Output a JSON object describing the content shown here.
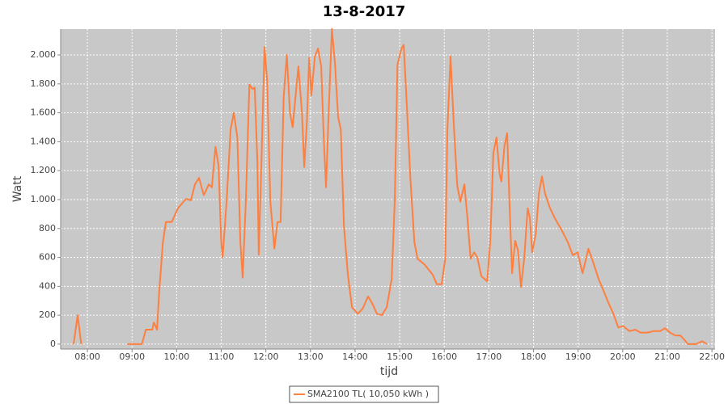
{
  "chart_data": {
    "type": "line",
    "title": "13-8-2017",
    "x_label": "tijd",
    "y_label": "Watt",
    "xlim": [
      7.4,
      22.07
    ],
    "ylim": [
      -34,
      2179
    ],
    "xticks": [
      {
        "value": 8,
        "label": "08:00"
      },
      {
        "value": 9,
        "label": "09:00"
      },
      {
        "value": 10,
        "label": "10:00"
      },
      {
        "value": 11,
        "label": "11:00"
      },
      {
        "value": 12,
        "label": "12:00"
      },
      {
        "value": 13,
        "label": "13:00"
      },
      {
        "value": 14,
        "label": "14:00"
      },
      {
        "value": 15,
        "label": "15:00"
      },
      {
        "value": 16,
        "label": "16:00"
      },
      {
        "value": 17,
        "label": "17:00"
      },
      {
        "value": 18,
        "label": "18:00"
      },
      {
        "value": 19,
        "label": "19:00"
      },
      {
        "value": 20,
        "label": "20:00"
      },
      {
        "value": 21,
        "label": "21:00"
      },
      {
        "value": 22,
        "label": "22:00"
      }
    ],
    "yticks": [
      0,
      200,
      400,
      600,
      800,
      {
        "value": 1000,
        "label": "1.000"
      },
      {
        "value": 1200,
        "label": "1.200"
      },
      {
        "value": 1400,
        "label": "1.400"
      },
      {
        "value": 1600,
        "label": "1.600"
      },
      {
        "value": 1800,
        "label": "1.800"
      },
      {
        "value": 2000,
        "label": "2.000"
      }
    ],
    "grid": true,
    "legend": "bottom",
    "series": [
      {
        "name": "SMA2100 TL( 10,050 kWh )",
        "color": "#ff7f3f",
        "x": [
          7.69,
          7.78,
          7.86,
          8.4,
          8.89,
          9.22,
          9.31,
          9.45,
          9.49,
          9.56,
          9.61,
          9.69,
          9.76,
          9.89,
          10.03,
          10.21,
          10.32,
          10.41,
          10.5,
          10.61,
          10.72,
          10.79,
          10.87,
          10.94,
          11.0,
          11.03,
          11.12,
          11.21,
          11.28,
          11.36,
          11.43,
          11.48,
          11.55,
          11.63,
          11.7,
          11.75,
          11.81,
          11.84,
          11.9,
          11.97,
          12.03,
          12.1,
          12.19,
          12.26,
          12.33,
          12.4,
          12.47,
          12.54,
          12.6,
          12.68,
          12.73,
          12.81,
          12.86,
          12.92,
          12.97,
          13.02,
          13.1,
          13.17,
          13.24,
          13.3,
          13.35,
          13.4,
          13.48,
          13.55,
          13.62,
          13.68,
          13.75,
          13.84,
          13.93,
          14.06,
          14.17,
          14.29,
          14.38,
          14.49,
          14.6,
          14.71,
          14.82,
          14.89,
          14.95,
          15.04,
          15.09,
          15.16,
          15.24,
          15.33,
          15.4,
          15.56,
          15.74,
          15.83,
          15.94,
          16.02,
          16.07,
          16.14,
          16.21,
          16.29,
          16.36,
          16.45,
          16.52,
          16.59,
          16.67,
          16.74,
          16.83,
          16.96,
          17.03,
          17.1,
          17.17,
          17.24,
          17.28,
          17.35,
          17.41,
          17.46,
          17.52,
          17.59,
          17.65,
          17.72,
          17.79,
          17.87,
          17.92,
          17.97,
          18.05,
          18.12,
          18.19,
          18.26,
          18.37,
          18.48,
          18.63,
          18.77,
          18.88,
          18.99,
          19.1,
          19.23,
          19.34,
          19.46,
          19.57,
          19.68,
          19.79,
          19.9,
          20.01,
          20.15,
          20.28,
          20.4,
          20.55,
          20.69,
          20.84,
          20.95,
          21.06,
          21.18,
          21.29,
          21.37,
          21.46,
          21.64,
          21.78,
          21.89
        ],
        "values": [
          0,
          200,
          0,
          null,
          0,
          0,
          100,
          100,
          150,
          100,
          370,
          700,
          845,
          845,
          940,
          1005,
          995,
          1105,
          1150,
          1030,
          1105,
          1085,
          1365,
          1235,
          705,
          600,
          985,
          1485,
          1600,
          1430,
          705,
          460,
          985,
          1795,
          1765,
          1775,
          1260,
          620,
          1260,
          2055,
          1820,
          985,
          660,
          845,
          845,
          1710,
          2000,
          1600,
          1500,
          1765,
          1920,
          1600,
          1225,
          1540,
          1980,
          1720,
          1990,
          2045,
          1920,
          1400,
          1085,
          1540,
          2180,
          1935,
          1570,
          1485,
          815,
          480,
          255,
          210,
          245,
          330,
          285,
          210,
          200,
          255,
          450,
          985,
          1935,
          2045,
          2070,
          1655,
          1150,
          705,
          590,
          550,
          480,
          415,
          415,
          590,
          1485,
          1990,
          1540,
          1095,
          985,
          1105,
          870,
          590,
          635,
          600,
          470,
          435,
          705,
          1320,
          1430,
          1180,
          1125,
          1375,
          1460,
          985,
          490,
          715,
          650,
          395,
          590,
          940,
          870,
          635,
          760,
          1040,
          1160,
          1040,
          940,
          870,
          790,
          705,
          615,
          635,
          490,
          660,
          565,
          450,
          370,
          285,
          210,
          115,
          125,
          90,
          100,
          80,
          80,
          90,
          90,
          110,
          80,
          60,
          60,
          35,
          0,
          0,
          20,
          0
        ]
      }
    ]
  }
}
